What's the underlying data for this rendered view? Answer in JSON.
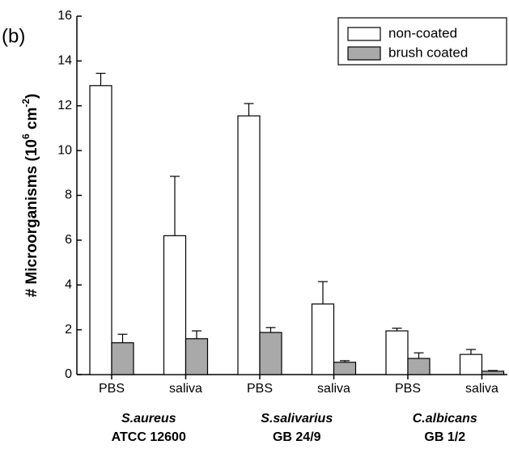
{
  "chart_data": {
    "type": "bar",
    "panel_label": "(b)",
    "y_label": [
      "# Microorganisms (10",
      "6",
      " cm",
      "-2",
      ")"
    ],
    "categories": [
      "PBS",
      "saliva",
      "PBS",
      "saliva",
      "PBS",
      "saliva"
    ],
    "groups": [
      [
        "S.aureus",
        "ATCC 12600"
      ],
      [
        "S.salivarius",
        "GB 24/9"
      ],
      [
        "C.albicans",
        "GB 1/2"
      ]
    ],
    "series": [
      {
        "name": "non-coated",
        "color": "#ffffff",
        "values": [
          12.9,
          6.2,
          11.55,
          3.15,
          1.95,
          0.9
        ],
        "errors": [
          0.55,
          2.65,
          0.55,
          1.0,
          0.12,
          0.22
        ]
      },
      {
        "name": "brush coated",
        "color": "#a9a9a9",
        "values": [
          1.42,
          1.6,
          1.88,
          0.55,
          0.72,
          0.15
        ],
        "errors": [
          0.38,
          0.35,
          0.22,
          0.07,
          0.25,
          0.03
        ]
      }
    ],
    "ylim": [
      0,
      16
    ],
    "yticks": [
      0,
      2,
      4,
      6,
      8,
      10,
      12,
      14,
      16
    ],
    "legend": "upper right"
  }
}
